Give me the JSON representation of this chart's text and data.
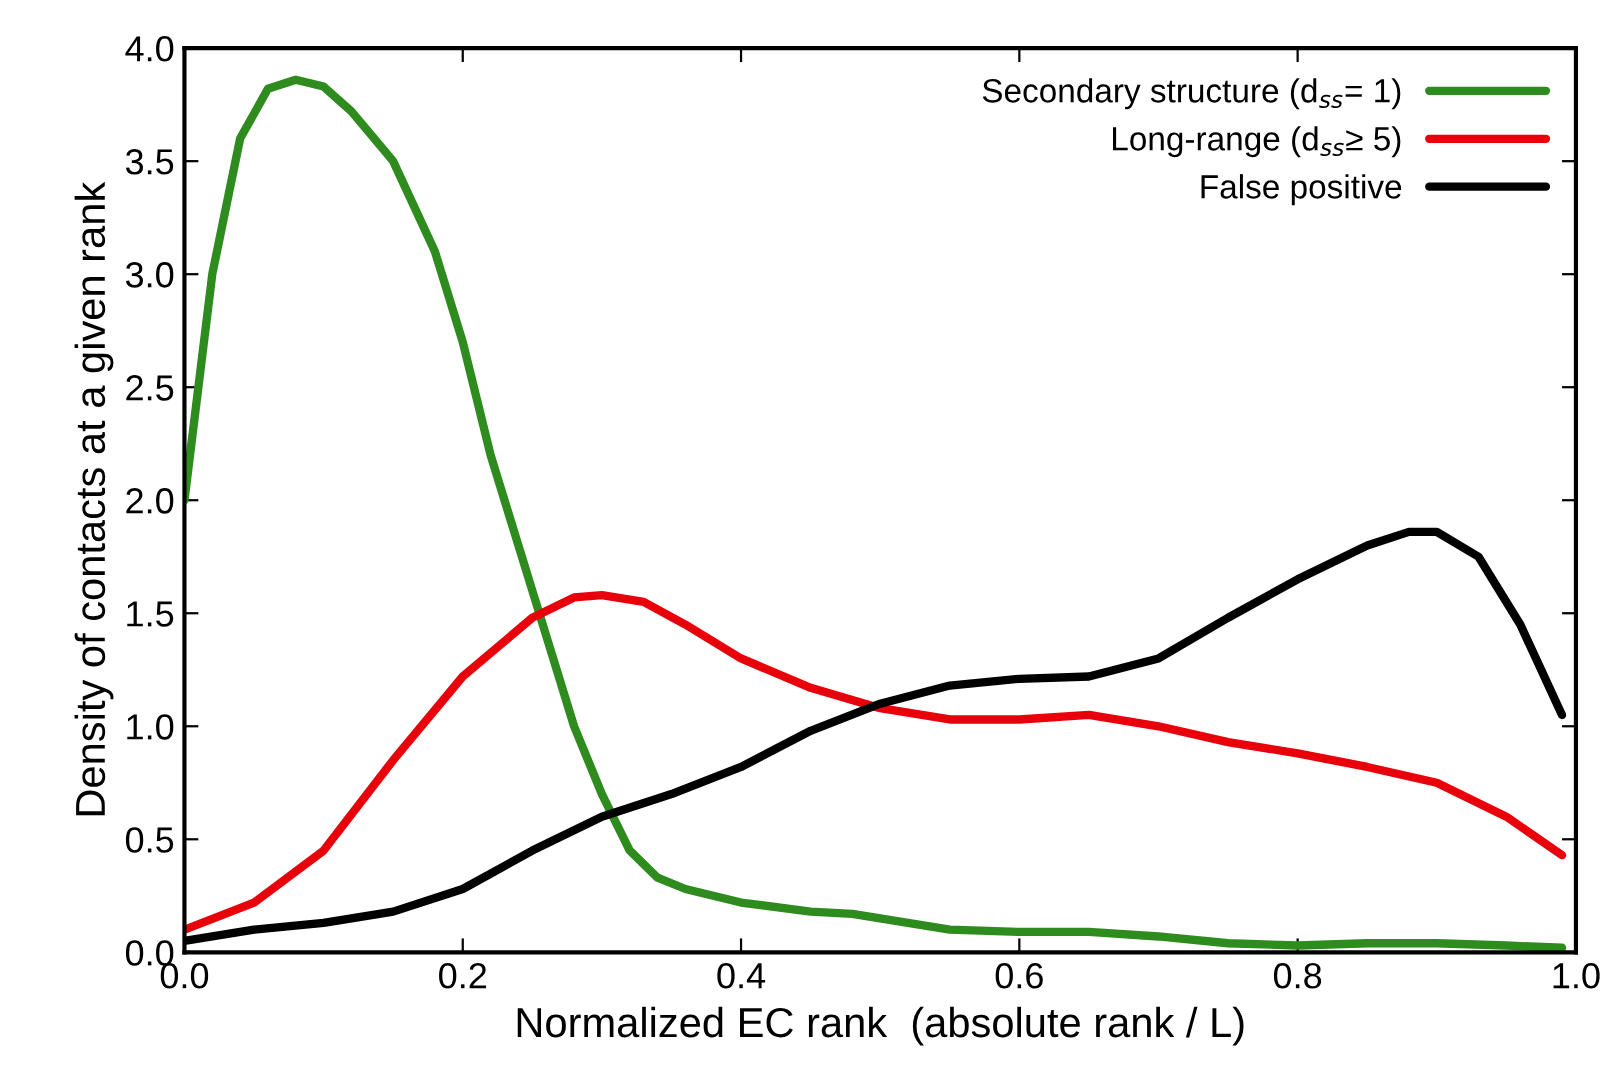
{
  "chart_data": {
    "type": "line",
    "xlabel": "Normalized EC rank  (absolute rank / L)",
    "ylabel": "Density of contacts at a given rank",
    "xlim": [
      0.0,
      1.0
    ],
    "ylim": [
      0.0,
      4.0
    ],
    "xticks": [
      {
        "value": 0,
        "label": "0.0"
      },
      0.2,
      0.4,
      0.6,
      0.8,
      {
        "value": 1,
        "label": "1.0"
      }
    ],
    "yticks": [
      {
        "value": 0,
        "label": "0.0"
      },
      0.5,
      {
        "value": 1,
        "label": "1.0"
      },
      1.5,
      {
        "value": 2,
        "label": "2.0"
      },
      2.5,
      {
        "value": 3,
        "label": "3.0"
      },
      3.5,
      {
        "value": 4,
        "label": "4.0"
      }
    ],
    "grid": false,
    "legend": "top right",
    "marker": "none",
    "line_style": "solid",
    "series": [
      {
        "name": "Secondary structure (d$_{ss}$= 1)",
        "color": "#2e8b1e",
        "x": [
          0,
          0.02,
          0.04,
          0.06,
          0.08,
          0.1,
          0.12,
          0.15,
          0.18,
          0.2,
          0.22,
          0.25,
          0.28,
          0.3,
          0.32,
          0.34,
          0.36,
          0.4,
          0.45,
          0.48,
          0.5,
          0.55,
          0.6,
          0.65,
          0.7,
          0.75,
          0.8,
          0.85,
          0.9,
          0.95,
          0.99
        ],
        "values": [
          2.0,
          3.0,
          3.6,
          3.82,
          3.86,
          3.83,
          3.72,
          3.5,
          3.1,
          2.7,
          2.2,
          1.6,
          1.0,
          0.7,
          0.45,
          0.33,
          0.28,
          0.22,
          0.18,
          0.17,
          0.15,
          0.1,
          0.09,
          0.09,
          0.07,
          0.04,
          0.03,
          0.04,
          0.04,
          0.03,
          0.02
        ]
      },
      {
        "name": "Long-range (d$_{ss}$≥ 5)",
        "color": "#e8000b",
        "x": [
          0,
          0.05,
          0.1,
          0.15,
          0.2,
          0.25,
          0.28,
          0.3,
          0.33,
          0.36,
          0.4,
          0.45,
          0.5,
          0.55,
          0.6,
          0.65,
          0.7,
          0.75,
          0.8,
          0.85,
          0.9,
          0.95,
          0.99
        ],
        "values": [
          0.1,
          0.22,
          0.45,
          0.85,
          1.22,
          1.48,
          1.57,
          1.58,
          1.55,
          1.45,
          1.3,
          1.17,
          1.08,
          1.03,
          1.03,
          1.05,
          1.0,
          0.93,
          0.88,
          0.82,
          0.75,
          0.6,
          0.43
        ]
      },
      {
        "name": "False positive",
        "color": "#000000",
        "x": [
          0,
          0.05,
          0.1,
          0.15,
          0.2,
          0.25,
          0.3,
          0.35,
          0.4,
          0.45,
          0.5,
          0.55,
          0.6,
          0.65,
          0.7,
          0.75,
          0.8,
          0.85,
          0.88,
          0.9,
          0.93,
          0.96,
          0.99
        ],
        "values": [
          0.05,
          0.1,
          0.13,
          0.18,
          0.28,
          0.45,
          0.6,
          0.7,
          0.82,
          0.98,
          1.1,
          1.18,
          1.21,
          1.22,
          1.3,
          1.48,
          1.65,
          1.8,
          1.86,
          1.86,
          1.75,
          1.45,
          1.05
        ]
      }
    ]
  }
}
